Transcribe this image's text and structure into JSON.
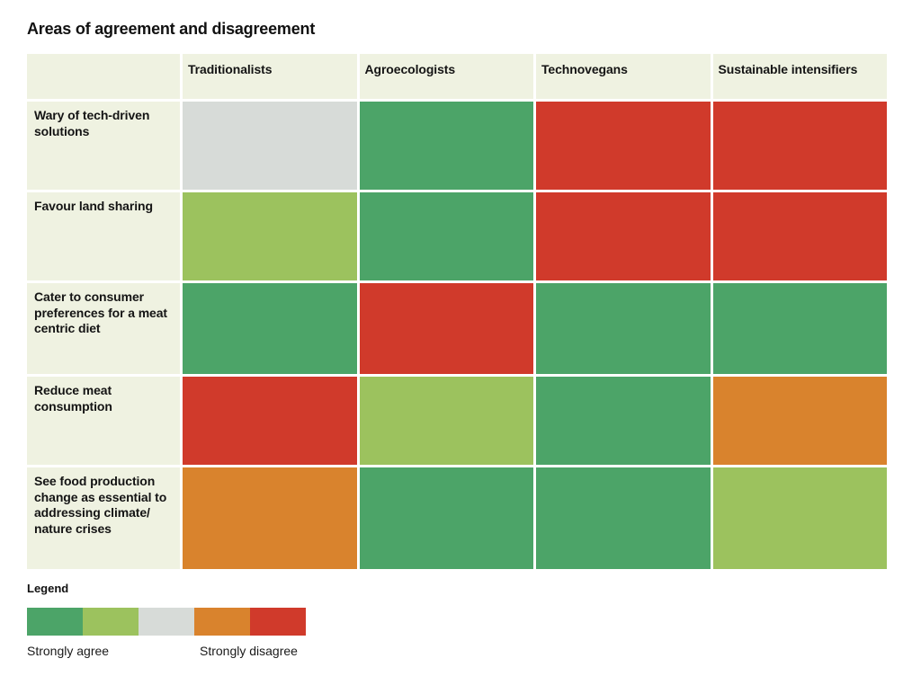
{
  "title": "Areas of agreement and disagreement",
  "palette": {
    "strongly-agree": "#4ca468",
    "agree": "#9cc25e",
    "neutral": "#d7dbd8",
    "disagree": "#d9832d",
    "strongly-disagree": "#d03a2b",
    "header_bg": "#eff2e1",
    "text": "#141414"
  },
  "chart_data": {
    "type": "heatmap",
    "title": "Areas of agreement and disagreement",
    "columns": [
      "Traditionalists",
      "Agroecologists",
      "Technovegans",
      "Sustainable intensifiers"
    ],
    "rows": [
      {
        "label": "Wary of tech-driven solutions",
        "values": [
          "neutral",
          "strongly-agree",
          "strongly-disagree",
          "strongly-disagree"
        ]
      },
      {
        "label": "Favour land sharing",
        "values": [
          "agree",
          "strongly-agree",
          "strongly-disagree",
          "strongly-disagree"
        ]
      },
      {
        "label": "Cater to consumer preferences for a meat centric diet",
        "values": [
          "strongly-agree",
          "strongly-disagree",
          "strongly-agree",
          "strongly-agree"
        ]
      },
      {
        "label": "Reduce meat consumption",
        "values": [
          "strongly-disagree",
          "agree",
          "strongly-agree",
          "disagree"
        ]
      },
      {
        "label": "See food production change as essential to addressing climate/ nature crises",
        "values": [
          "disagree",
          "strongly-agree",
          "strongly-agree",
          "agree"
        ]
      }
    ],
    "value_scale": [
      "strongly-agree",
      "agree",
      "neutral",
      "disagree",
      "strongly-disagree"
    ],
    "legend_position": "bottom-left",
    "grid": false
  },
  "legend": {
    "title": "Legend",
    "swatch_order": [
      "strongly-agree",
      "agree",
      "neutral",
      "disagree",
      "strongly-disagree"
    ],
    "left_label": "Strongly agree",
    "right_label": "Strongly disagree"
  }
}
